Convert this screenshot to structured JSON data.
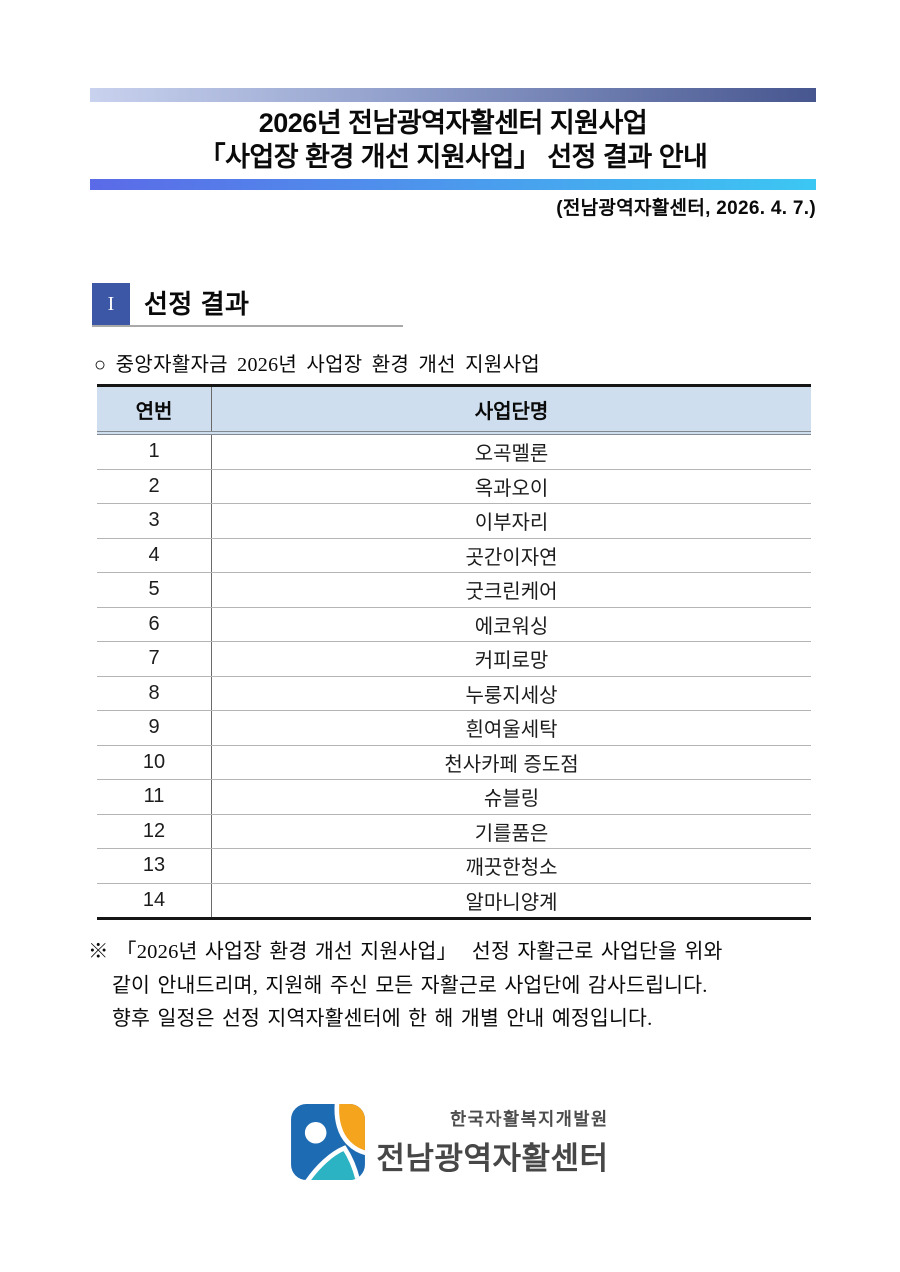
{
  "header": {
    "title_line1": "2026년 전남광역자활센터 지원사업",
    "title_line2": "「사업장 환경 개선 지원사업」 선정 결과 안내",
    "date_line": "(전남광역자활센터, 2026. 4. 7.)"
  },
  "section": {
    "number": "I",
    "title": "선정 결과",
    "bullet": "○ 중앙자활자금 2026년 사업장 환경 개선 지원사업"
  },
  "table": {
    "columns": [
      "연번",
      "사업단명"
    ],
    "rows": [
      [
        "1",
        "오곡멜론"
      ],
      [
        "2",
        "옥과오이"
      ],
      [
        "3",
        "이부자리"
      ],
      [
        "4",
        "곳간이자연"
      ],
      [
        "5",
        "굿크린케어"
      ],
      [
        "6",
        "에코워싱"
      ],
      [
        "7",
        "커피로망"
      ],
      [
        "8",
        "누룽지세상"
      ],
      [
        "9",
        "흰여울세탁"
      ],
      [
        "10",
        "천사카페 증도점"
      ],
      [
        "11",
        "슈블링"
      ],
      [
        "12",
        "기를품은"
      ],
      [
        "13",
        "깨끗한청소"
      ],
      [
        "14",
        "알마니양계"
      ]
    ]
  },
  "footnote": {
    "text": "※ 「2026년 사업장 환경 개선 지원사업」  선정 자활근로 사업단을 위와\n같이 안내드리며, 지원해 주신 모든 자활근로 사업단에 감사드립니다.\n향후 일정은 선정 지역자활센터에 한 해 개별 안내 예정입니다."
  },
  "logo": {
    "institute": "한국자활복지개발원",
    "center": "전남광역자활센터"
  },
  "colors": {
    "bar_top_left": "#c9d2ee",
    "bar_top_right": "#47568f",
    "bar_bottom_left": "#5b6ae7",
    "bar_bottom_right": "#3cc7f3",
    "section_box": "#3b57a6",
    "table_header_bg": "#cfdeef",
    "logo_blue": "#1d6bb3",
    "logo_orange": "#f5a41e",
    "logo_teal": "#2bb3c3"
  }
}
